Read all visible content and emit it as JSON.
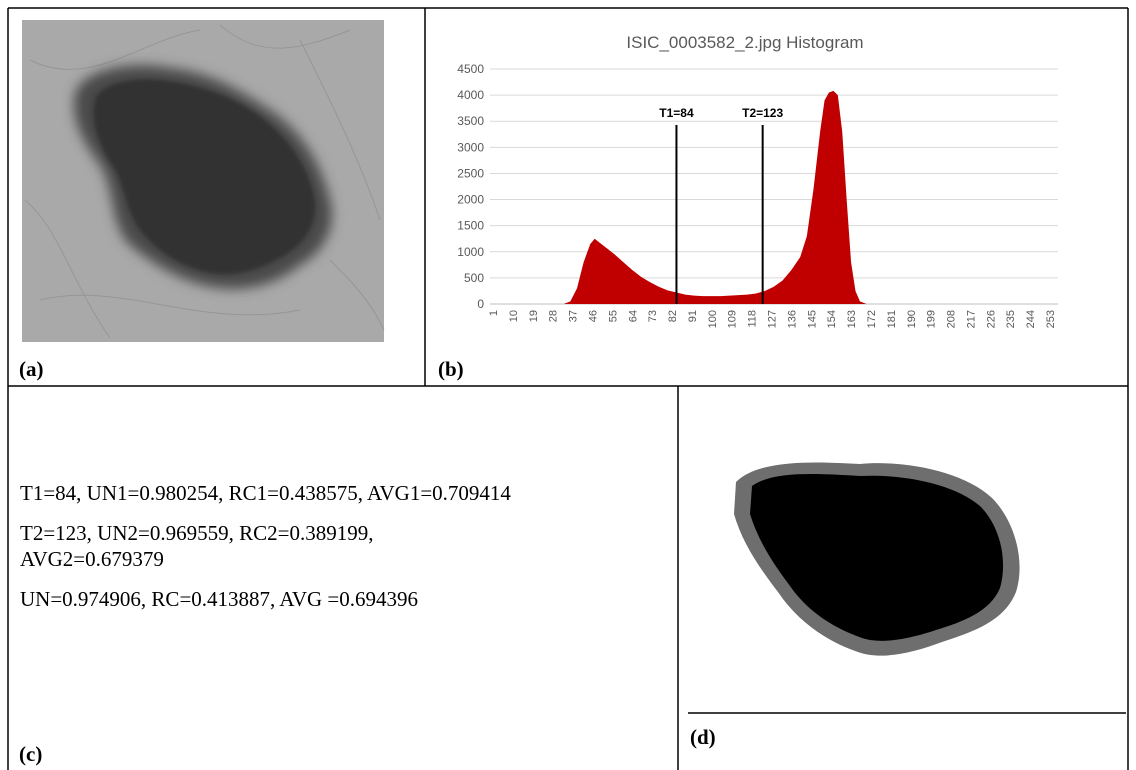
{
  "panels": {
    "a": {
      "label": "(a)"
    },
    "b": {
      "label": "(b)"
    },
    "c": {
      "label": "(c)",
      "lines": [
        "T1=84, UN1=0.980254, RC1=0.438575, AVG1=0.709414",
        "T2=123, UN2=0.969559, RC2=0.389199,",
        "AVG2=0.679379",
        "UN=0.974906, RC=0.413887, AVG =0.694396"
      ]
    },
    "d": {
      "label": "(d)"
    }
  },
  "chart_data": {
    "type": "area",
    "title": "ISIC_0003582_2.jpg Histogram",
    "x": [
      1,
      30,
      33,
      36,
      39,
      42,
      45,
      47,
      50,
      53,
      56,
      60,
      64,
      68,
      72,
      76,
      80,
      84,
      88,
      92,
      96,
      100,
      104,
      108,
      112,
      116,
      120,
      124,
      128,
      132,
      136,
      140,
      143,
      146,
      149,
      151,
      153,
      155,
      157,
      159,
      161,
      163,
      165,
      167,
      170,
      253
    ],
    "values": [
      0,
      0,
      0,
      50,
      300,
      800,
      1150,
      1250,
      1150,
      1050,
      950,
      800,
      650,
      520,
      420,
      330,
      260,
      220,
      180,
      160,
      150,
      150,
      150,
      160,
      170,
      180,
      200,
      250,
      330,
      450,
      650,
      900,
      1300,
      2200,
      3300,
      3900,
      4050,
      4080,
      4000,
      3300,
      2000,
      800,
      250,
      50,
      0,
      0
    ],
    "color": "#c00000",
    "xlim": [
      1,
      253
    ],
    "xticks": [
      1,
      10,
      19,
      28,
      37,
      46,
      55,
      64,
      73,
      82,
      91,
      100,
      109,
      118,
      127,
      136,
      145,
      154,
      163,
      172,
      181,
      190,
      199,
      208,
      217,
      226,
      235,
      244,
      253
    ],
    "ylim": [
      0,
      4500
    ],
    "yticks": [
      0,
      500,
      1000,
      1500,
      2000,
      2500,
      3000,
      3500,
      4000,
      4500
    ],
    "grid": true,
    "annotations": [
      {
        "label": "T1=84",
        "x": 84
      },
      {
        "label": "T2=123",
        "x": 123
      }
    ]
  }
}
